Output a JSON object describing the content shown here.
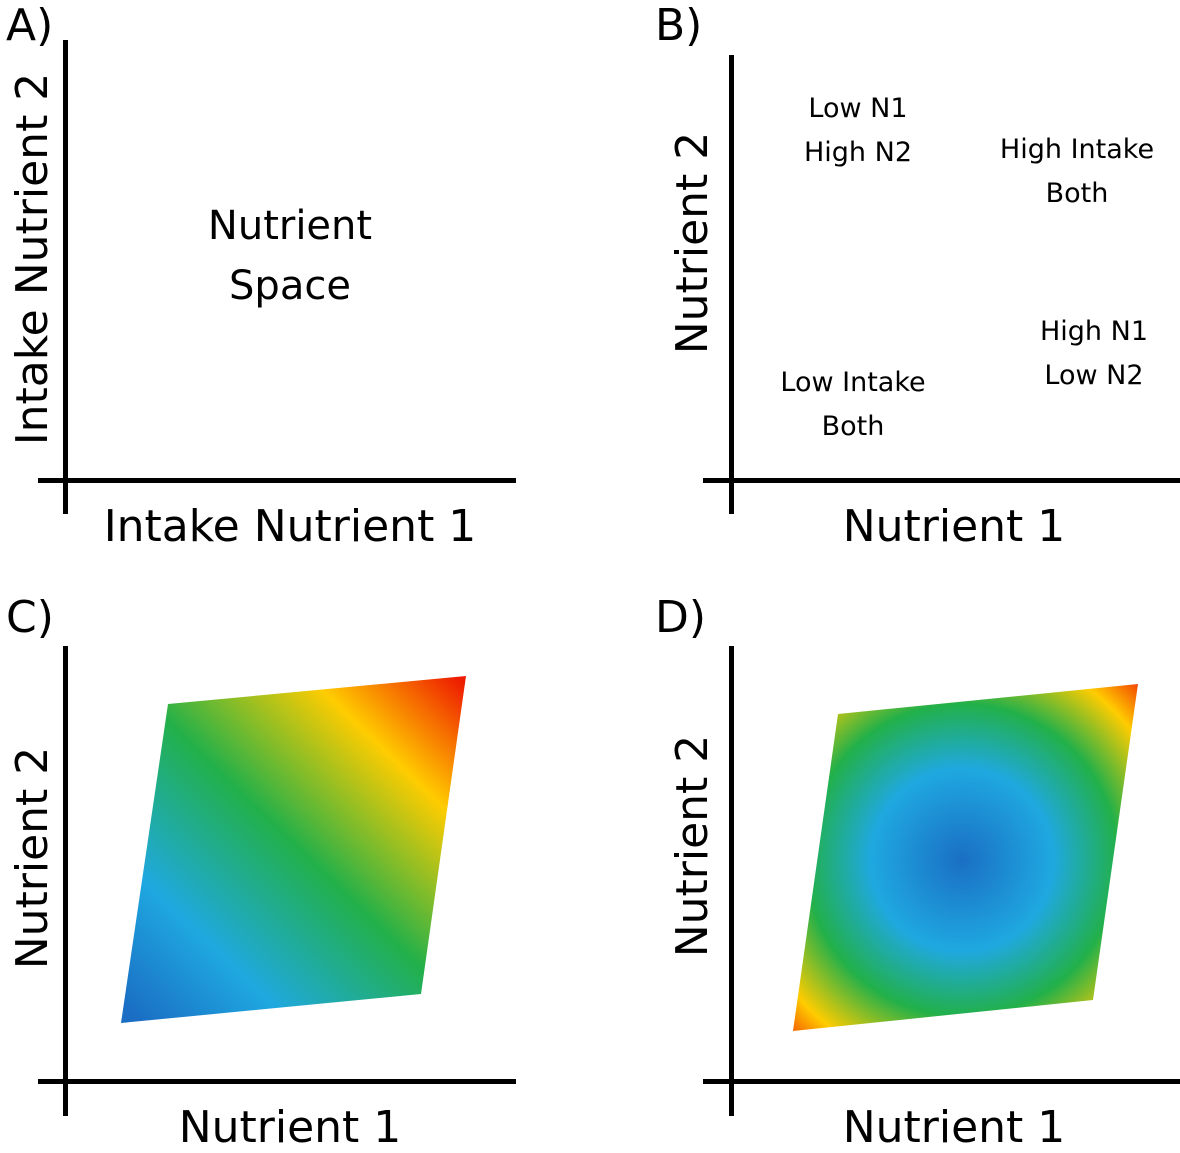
{
  "panels": {
    "a": {
      "letter": "A)",
      "x_label": "Intake Nutrient 1",
      "y_label": "Intake Nutrient 2",
      "center_text": [
        "Nutrient",
        "Space"
      ]
    },
    "b": {
      "letter": "B)",
      "x_label": "Nutrient 1",
      "y_label": "Nutrient 2",
      "regions": {
        "low_n1_high_n2": [
          "Low N1",
          "High N2"
        ],
        "high_both": [
          "High Intake",
          "Both"
        ],
        "high_n1_low_n2": [
          "High N1",
          "Low N2"
        ],
        "low_both": [
          "Low Intake",
          "Both"
        ]
      }
    },
    "c": {
      "letter": "C)",
      "x_label": "Nutrient 1",
      "y_label": "Nutrient 2",
      "surface": "linear-gradient",
      "colors": [
        "#1a6fc4",
        "#1fa8e0",
        "#22b04a",
        "#ffcc00",
        "#ee1c00"
      ]
    },
    "d": {
      "letter": "D)",
      "x_label": "Nutrient 1",
      "y_label": "Nutrient 2",
      "surface": "radial-gradient",
      "colors": [
        "#1a6fc4",
        "#1fa8e0",
        "#22b04a",
        "#ffcc00",
        "#ee1c00"
      ]
    }
  }
}
